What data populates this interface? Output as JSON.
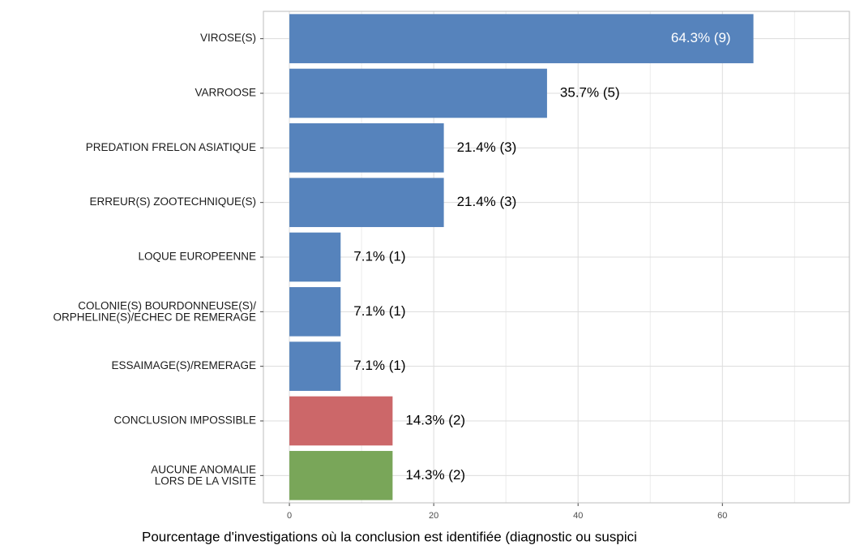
{
  "chart_data": {
    "type": "bar",
    "orientation": "horizontal",
    "x_label": "Pourcentage d'investigations où la conclusion est identifiée (diagnostic ou suspici",
    "categories": [
      "VIROSE(S)",
      "VARROOSE",
      "PREDATION FRELON ASIATIQUE",
      "ERREUR(S) ZOOTECHNIQUE(S)",
      "LOQUE EUROPEENNE",
      "COLONIE(S) BOURDONNEUSE(S)/\nORPHELINE(S)/ECHEC DE REMERAGE",
      "ESSAIMAGE(S)/REMERAGE",
      "CONCLUSION IMPOSSIBLE",
      "AUCUNE ANOMALIE\nLORS DE LA VISITE"
    ],
    "values": [
      64.3,
      35.7,
      21.4,
      21.4,
      7.1,
      7.1,
      7.1,
      14.3,
      14.3
    ],
    "value_labels": [
      "64.3% (9)",
      "35.7% (5)",
      "21.4% (3)",
      "21.4% (3)",
      "7.1% (1)",
      "7.1% (1)",
      "7.1% (1)",
      "14.3% (2)",
      "14.3% (2)"
    ],
    "colors": [
      "#5683bc",
      "#5683bc",
      "#5683bc",
      "#5683bc",
      "#5683bc",
      "#5683bc",
      "#5683bc",
      "#cc6769",
      "#79a659"
    ],
    "xlim": [
      -3.6,
      77.6
    ],
    "xticks": [
      0,
      20,
      40,
      60
    ],
    "x_minor_ticks": [
      10,
      30,
      50,
      70
    ],
    "grid": true
  }
}
